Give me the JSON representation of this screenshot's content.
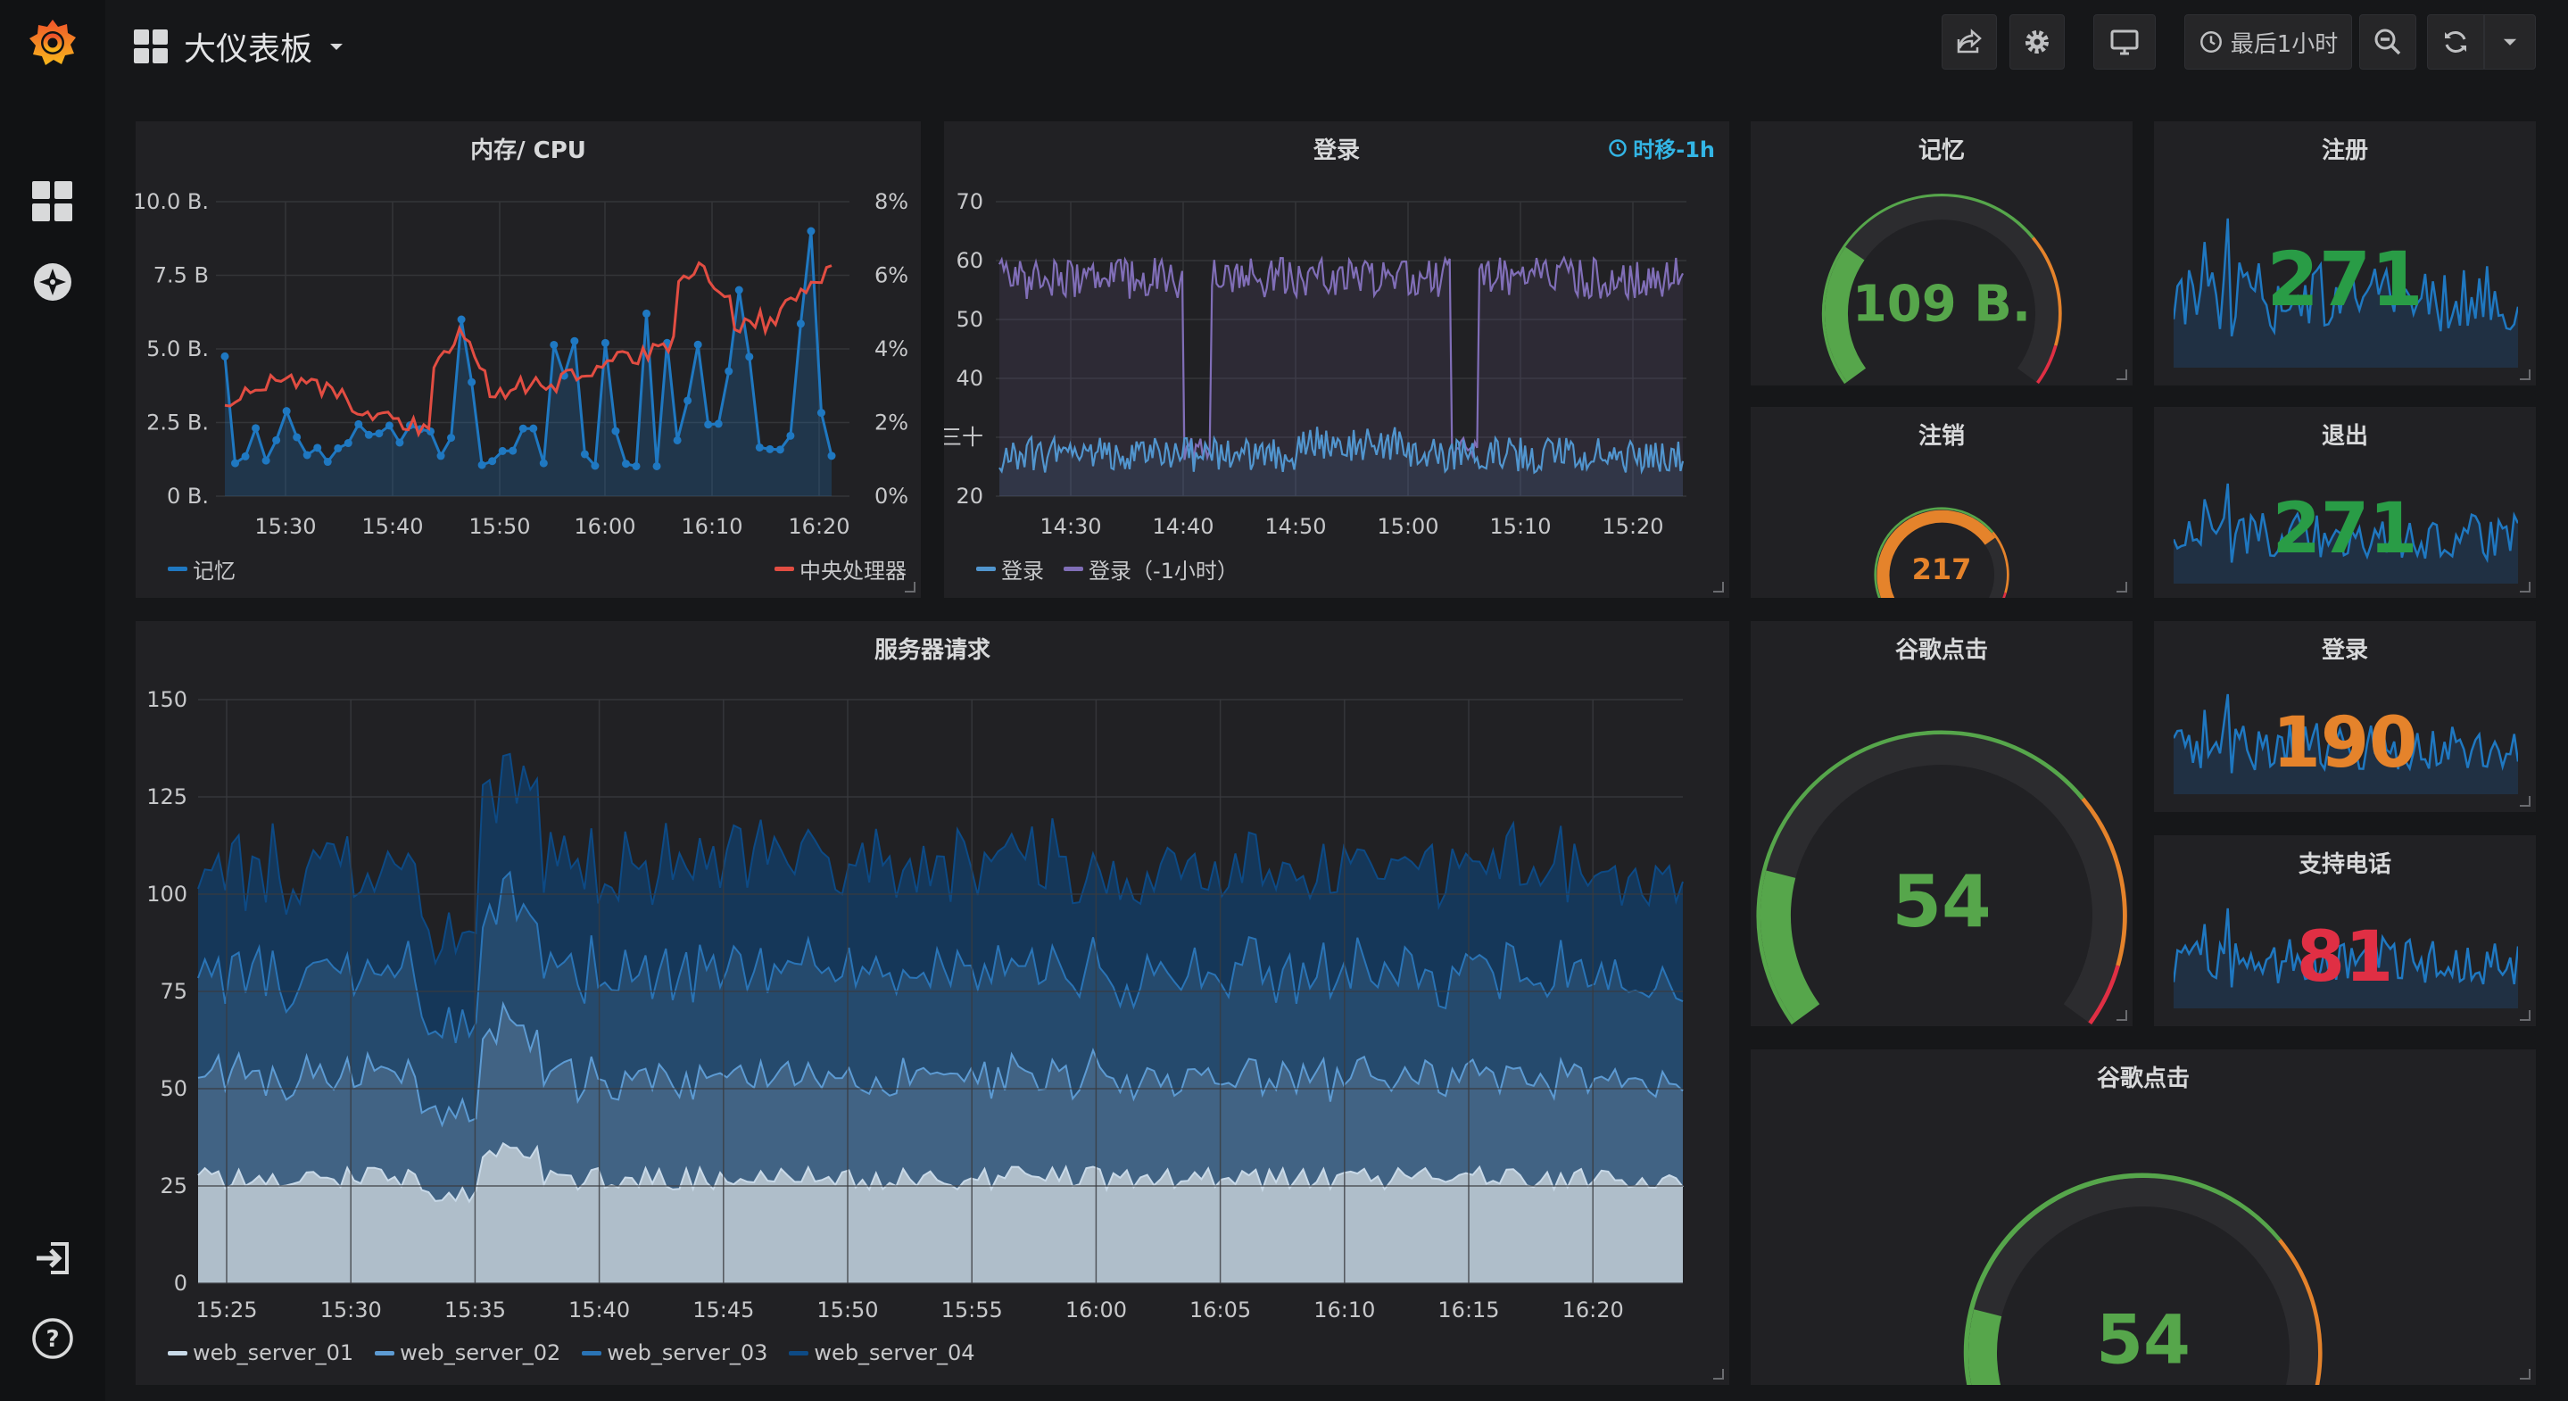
{
  "topbar": {
    "title": "大仪表板",
    "time_range": "最后1小时"
  },
  "panels": {
    "mem_cpu": {
      "title": "内存/ CPU",
      "left_axis": [
        "10.0 B.",
        "7.5 B",
        "5.0 B.",
        "2.5 B.",
        "0 B."
      ],
      "right_axis": [
        "8%",
        "6%",
        "4%",
        "2%",
        "0%"
      ],
      "x_axis": [
        "15:30",
        "15:40",
        "15:50",
        "16:00",
        "16:10",
        "16:20"
      ],
      "legend_left": "记忆",
      "legend_right": "中央处理器",
      "colors": {
        "memory": "#1f78c1",
        "cpu": "#e24d42"
      }
    },
    "logins": {
      "title": "登录",
      "time_shift": "时移-1h",
      "y_axis": [
        "70",
        "60",
        "50",
        "40",
        "三十",
        "20"
      ],
      "x_axis": [
        "14:30",
        "14:40",
        "14:50",
        "15:00",
        "15:10",
        "15:20"
      ],
      "legend_a": "登录",
      "legend_b": "登录（-1小时）",
      "colors": {
        "a": "#5195ce",
        "b": "#806eb7"
      }
    },
    "memory_gauge": {
      "title": "记忆",
      "value": "109 B.",
      "fraction": 0.28
    },
    "signups": {
      "title": "注册",
      "value": "271",
      "color": "#299c46"
    },
    "logout_gauge": {
      "title": "注销",
      "value": "217",
      "fraction": 0.72
    },
    "exits": {
      "title": "退出",
      "value": "271",
      "color": "#299c46"
    },
    "server_requests": {
      "title": "服务器请求",
      "y_axis": [
        "150",
        "125",
        "100",
        "75",
        "50",
        "25",
        "0"
      ],
      "x_axis": [
        "15:25",
        "15:30",
        "15:35",
        "15:40",
        "15:45",
        "15:50",
        "15:55",
        "16:00",
        "16:05",
        "16:10",
        "16:15",
        "16:20"
      ],
      "legend": [
        "web_server_01",
        "web_server_02",
        "web_server_03",
        "web_server_04"
      ],
      "colors": [
        "#c8d9e8",
        "#5d9bd3",
        "#2a74b6",
        "#0d4a85"
      ]
    },
    "google_hits_gauge": {
      "title": "谷歌点击",
      "value": "54",
      "fraction": 0.2
    },
    "logins_stat": {
      "title": "登录",
      "value": "190",
      "color": "#e5832b"
    },
    "support_calls": {
      "title": "支持电话",
      "value": "81",
      "color": "#e02f44"
    },
    "google_hits_gauge2": {
      "title": "谷歌点击",
      "value": "54",
      "fraction": 0.2
    }
  }
}
